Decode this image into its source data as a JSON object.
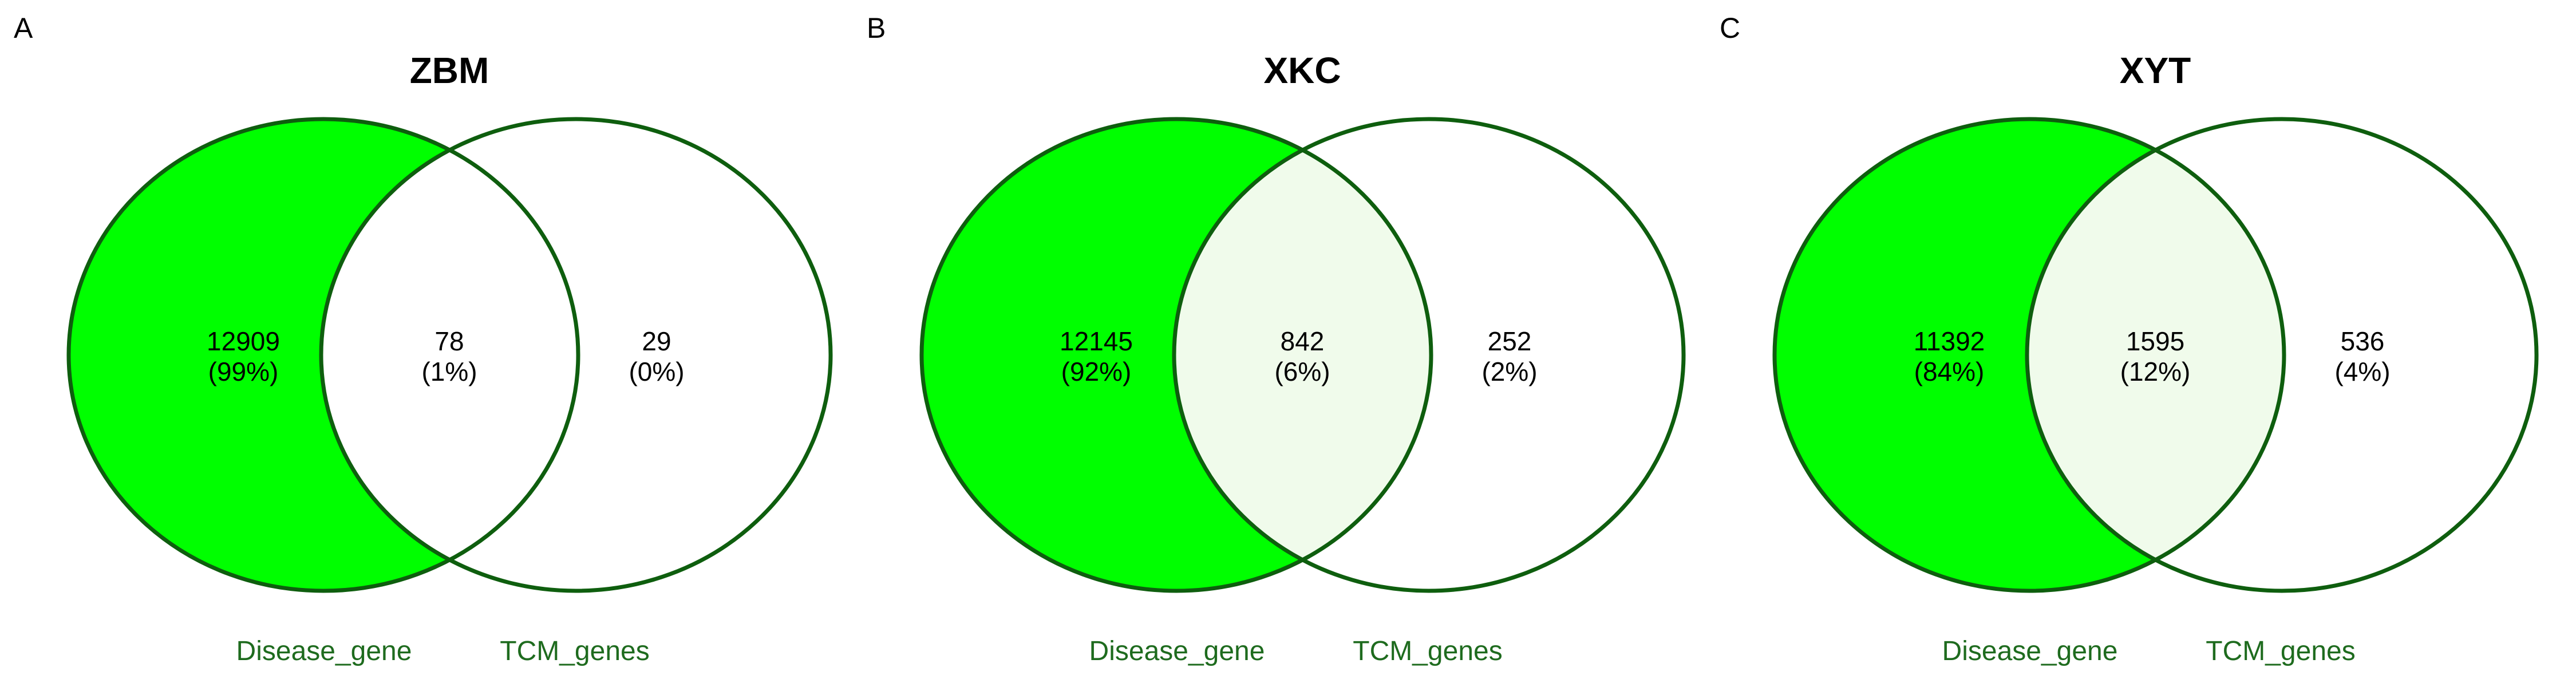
{
  "colors": {
    "left_fill": "#00ff00",
    "intersection_fill_low": "#ffffff",
    "intersection_fill_high": "#f0fbeb",
    "right_fill": "#ffffff",
    "stroke": "#0e5e0e",
    "set_label": "#1e6b1e"
  },
  "chart_data": [
    {
      "type": "venn",
      "panel": "A",
      "title": "ZBM",
      "sets": [
        "Disease_gene",
        "TCM_genes"
      ],
      "regions": {
        "left_only": {
          "count": "12909",
          "percent": "(99%)"
        },
        "both": {
          "count": "78",
          "percent": "(1%)"
        },
        "right_only": {
          "count": "29",
          "percent": "(0%)"
        }
      }
    },
    {
      "type": "venn",
      "panel": "B",
      "title": "XKC",
      "sets": [
        "Disease_gene",
        "TCM_genes"
      ],
      "regions": {
        "left_only": {
          "count": "12145",
          "percent": "(92%)"
        },
        "both": {
          "count": "842",
          "percent": "(6%)"
        },
        "right_only": {
          "count": "252",
          "percent": "(2%)"
        }
      }
    },
    {
      "type": "venn",
      "panel": "C",
      "title": "XYT",
      "sets": [
        "Disease_gene",
        "TCM_genes"
      ],
      "regions": {
        "left_only": {
          "count": "11392",
          "percent": "(84%)"
        },
        "both": {
          "count": "1595",
          "percent": "(12%)"
        },
        "right_only": {
          "count": "536",
          "percent": "(4%)"
        }
      }
    }
  ]
}
